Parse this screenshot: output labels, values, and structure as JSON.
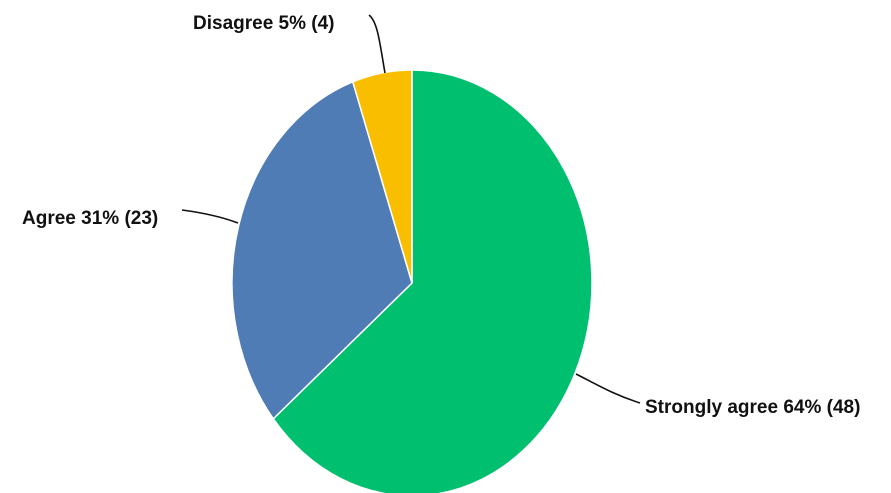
{
  "chart_data": {
    "type": "pie",
    "slices": [
      {
        "label": "Strongly agree 64% (48)",
        "category": "Strongly agree",
        "percent": 64,
        "count": 48,
        "color": "#00bf6f"
      },
      {
        "label": "Agree 31% (23)",
        "category": "Agree",
        "percent": 31,
        "count": 23,
        "color": "#507cb6"
      },
      {
        "label": "Disagree 5% (4)",
        "category": "Disagree",
        "percent": 5,
        "count": 4,
        "color": "#f9be00"
      }
    ],
    "legend": "none"
  }
}
